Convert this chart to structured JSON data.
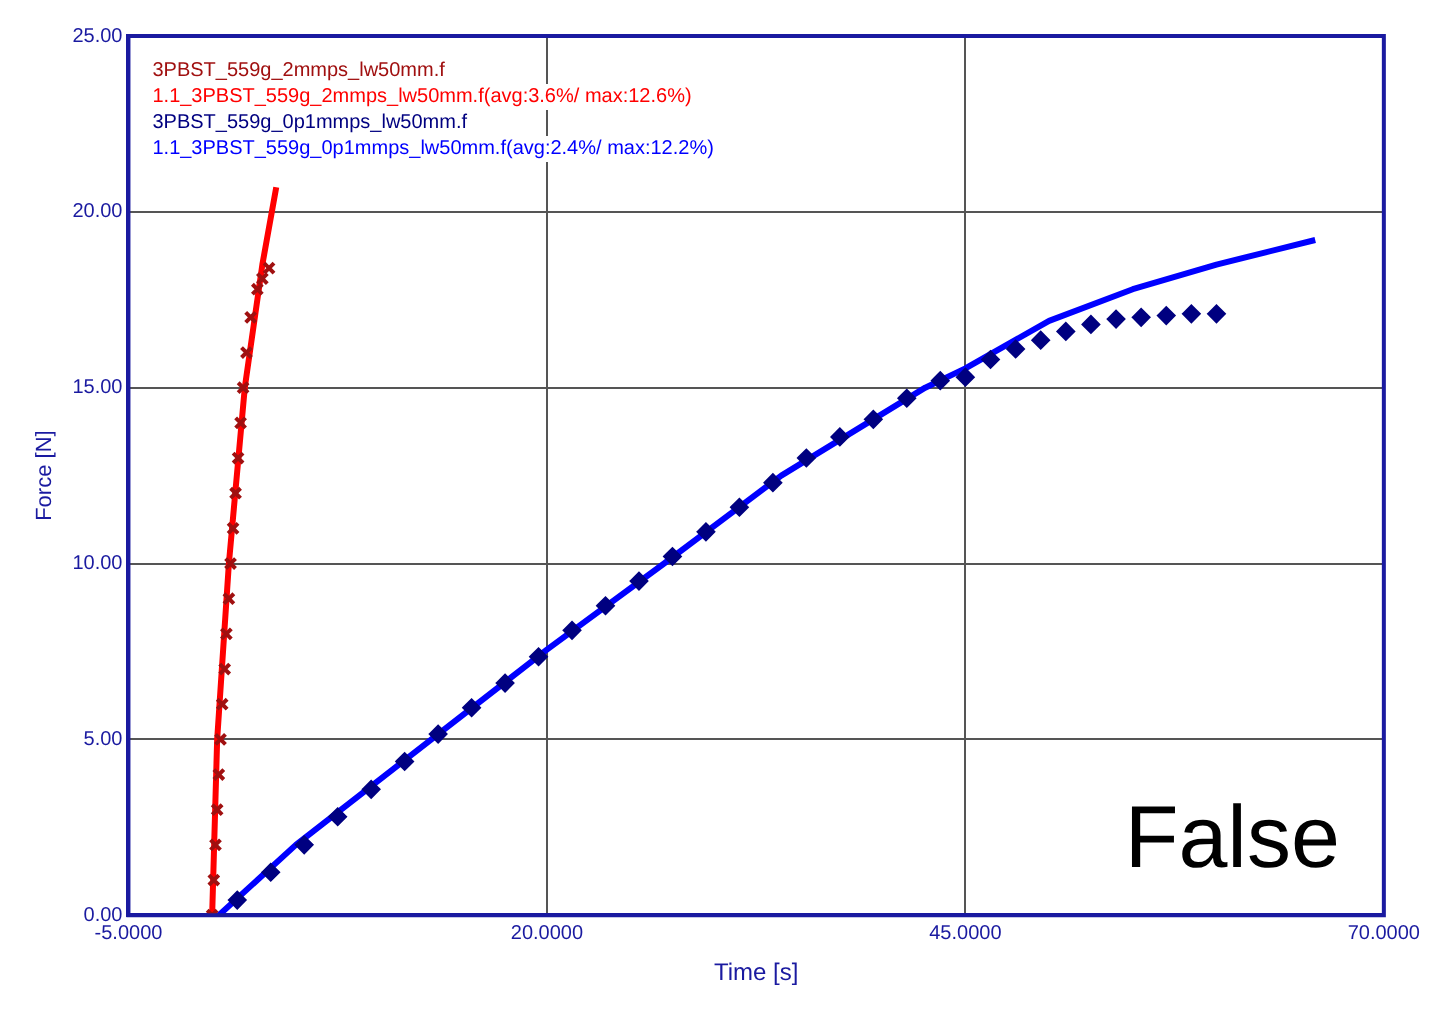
{
  "chart_data": {
    "type": "line",
    "xlabel": "Time [s]",
    "ylabel": "Force [N]",
    "xlim": [
      -5,
      70
    ],
    "xticks": [
      {
        "value": -5,
        "label": "-5.0000"
      },
      {
        "value": 20,
        "label": "20.0000"
      },
      {
        "value": 45,
        "label": "45.0000"
      },
      {
        "value": 70,
        "label": "70.0000"
      }
    ],
    "ylim": [
      0,
      25
    ],
    "yticks": [
      {
        "value": 0,
        "label": "0.00"
      },
      {
        "value": 5,
        "label": "5.00"
      },
      {
        "value": 10,
        "label": "10.00"
      },
      {
        "value": 15,
        "label": "15.00"
      },
      {
        "value": 20,
        "label": "20.00"
      },
      {
        "value": 25,
        "label": "25.00"
      }
    ],
    "grid": true,
    "legend": "top left",
    "annotations": [
      "False"
    ],
    "series": [
      {
        "name": "3PBST_559g_2mmps_lw50mm.f",
        "type": "scatter",
        "marker": "cross",
        "color": "#a01010",
        "x": [
          0,
          0.1,
          0.2,
          0.3,
          0.4,
          0.5,
          0.6,
          0.75,
          0.85,
          1.0,
          1.1,
          1.25,
          1.4,
          1.55,
          1.7,
          1.85,
          2.05,
          2.3,
          2.7,
          3.0,
          3.4
        ],
        "values": [
          0,
          1,
          2,
          3,
          4,
          5,
          6,
          7,
          8,
          9,
          10,
          11,
          12,
          13,
          14,
          15,
          16,
          17,
          17.8,
          18.1,
          18.4
        ]
      },
      {
        "name": "1.1_3PBST_559g_2mmps_lw50mm.f(avg:3.6%/ max:12.6%)",
        "type": "line",
        "marker": "none",
        "color": "#ff0000",
        "x": [
          0,
          0.3,
          1.0,
          1.95,
          3.0,
          3.83
        ],
        "values": [
          0,
          5,
          10,
          15,
          18.5,
          20.7
        ]
      },
      {
        "name": "3PBST_559g_0p1mmps_lw50mm.f",
        "type": "scatter",
        "marker": "diamond",
        "color": "#000080",
        "x": [
          1.5,
          3.5,
          5.5,
          7.5,
          9.5,
          11.5,
          13.5,
          15.5,
          17.5,
          19.5,
          21.5,
          23.5,
          25.5,
          27.5,
          29.5,
          31.5,
          33.5,
          35.5,
          37.5,
          39.5,
          41.5,
          43.5,
          45,
          46.5,
          48,
          49.5,
          51,
          52.5,
          54,
          55.5,
          57,
          58.5,
          60
        ],
        "values": [
          0.43,
          1.22,
          2.0,
          2.8,
          3.58,
          4.37,
          5.15,
          5.9,
          6.6,
          7.35,
          8.1,
          8.8,
          9.5,
          10.2,
          10.9,
          11.6,
          12.3,
          13.0,
          13.6,
          14.1,
          14.7,
          15.2,
          15.3,
          15.8,
          16.1,
          16.35,
          16.6,
          16.8,
          16.95,
          17.0,
          17.05,
          17.1,
          17.1
        ]
      },
      {
        "name": "1.1_3PBST_559g_0p1mmps_lw50mm.f(avg:2.4%/ max:12.2%)",
        "type": "line",
        "marker": "none",
        "color": "#0000ff",
        "x": [
          0.4,
          5,
          13.1,
          20,
          27,
          34,
          42.6,
          45,
          50,
          55,
          60,
          65.9
        ],
        "values": [
          0,
          2.0,
          5,
          7.55,
          10,
          12.5,
          15,
          15.55,
          16.9,
          17.8,
          18.5,
          19.2
        ]
      }
    ]
  }
}
